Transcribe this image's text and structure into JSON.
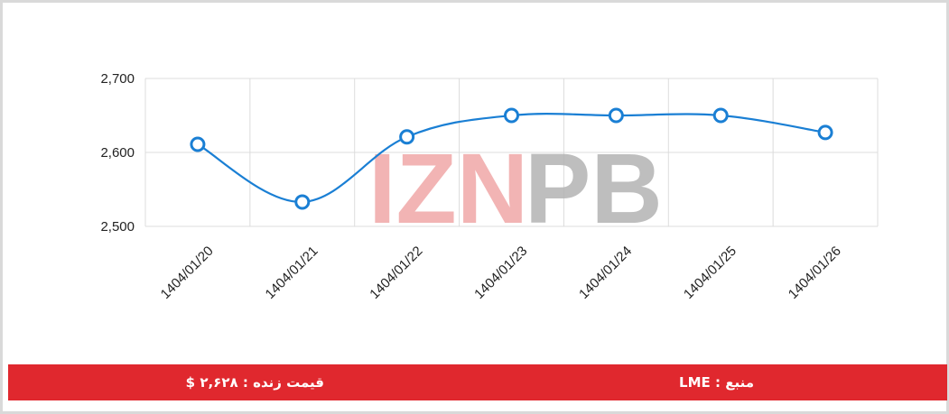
{
  "chart_data": {
    "type": "line",
    "title": "",
    "xlabel": "",
    "ylabel": "",
    "categories": [
      "1404/01/20",
      "1404/01/21",
      "1404/01/22",
      "1404/01/23",
      "1404/01/24",
      "1404/01/25",
      "1404/01/26"
    ],
    "series": [
      {
        "values": [
          2611,
          2533,
          2621,
          2650,
          2650,
          2650,
          2627
        ]
      }
    ],
    "ylim": [
      2500,
      2700
    ],
    "yticks": [
      2500,
      2600,
      2700
    ],
    "ytick_labels": [
      "2,500",
      "2,600",
      "2,700"
    ],
    "grid": true,
    "legend": "none",
    "line_color": "#1a7fd4",
    "marker_fill": "#ffffff"
  },
  "watermark": {
    "text_left": "IZN",
    "text_right": "PB",
    "color_left": "#f0a8a8",
    "color_right": "#b3b3b3"
  },
  "footer": {
    "source": "منبع : LME",
    "price": "قیمت زنده : ۲,۶۲۸ $",
    "background": "#e0282e"
  }
}
